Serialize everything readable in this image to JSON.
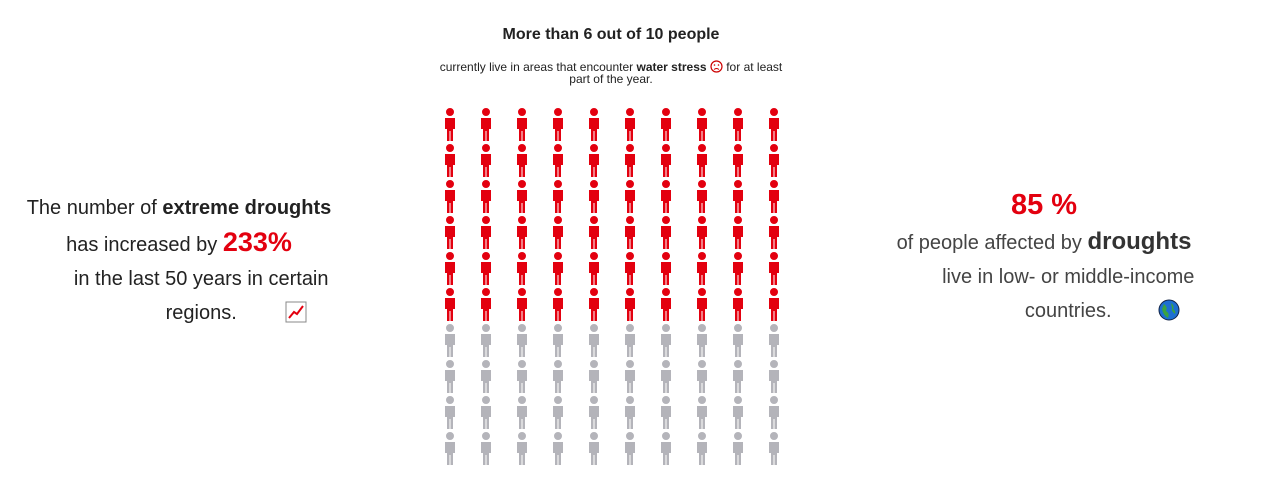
{
  "chart_data": {
    "type": "pictogram",
    "title": "More than 6 out of 10 people",
    "subtitle": {
      "before": "currently live in areas that encounter ",
      "bold": "water stress",
      "after": " for at least part of the year."
    },
    "values": [
      60,
      40
    ],
    "colors": [
      "#e3000f",
      "#b4b4ba"
    ]
  },
  "left_panel": {
    "line1_before": "The number of ",
    "line1_bold": "extreme droughts",
    "line2_before": "has increased by ",
    "line2_highlight": "233%",
    "line3": "in the last 50 years in certain regions."
  },
  "right_panel": {
    "highlight": "85 %",
    "line2_before": "of people affected by ",
    "line2_bold": "droughts",
    "line3": "live in low- or middle-income countries."
  }
}
